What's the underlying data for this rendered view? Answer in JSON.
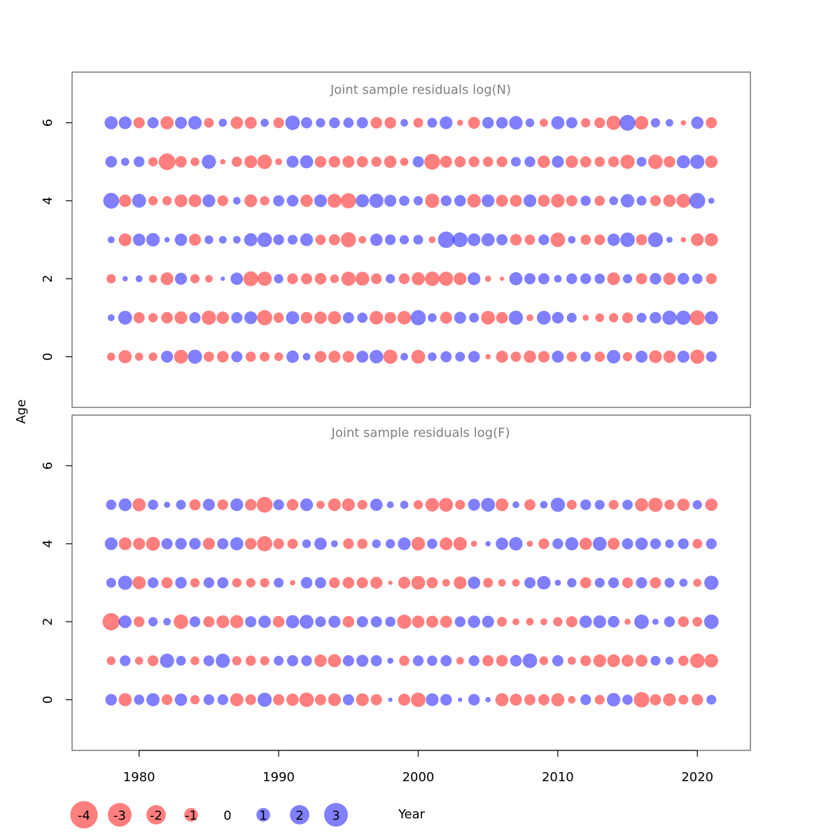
{
  "chart_data": {
    "type": "bubble",
    "ylabel": "Age",
    "xlabel": "Year",
    "x_ticks": [
      1980,
      1990,
      2000,
      2010,
      2020
    ],
    "y_ticks": [
      0,
      2,
      4,
      6
    ],
    "xlim": [
      1975.2,
      2023.8
    ],
    "ylim": [
      -1.3,
      7.3
    ],
    "colors": {
      "negative": "#ff0000",
      "positive": "#0000ff",
      "alpha": 0.5
    },
    "years": [
      1978,
      1979,
      1980,
      1981,
      1982,
      1983,
      1984,
      1985,
      1986,
      1987,
      1988,
      1989,
      1990,
      1991,
      1992,
      1993,
      1994,
      1995,
      1996,
      1997,
      1998,
      1999,
      2000,
      2001,
      2002,
      2003,
      2004,
      2005,
      2006,
      2007,
      2008,
      2009,
      2010,
      2011,
      2012,
      2013,
      2014,
      2015,
      2016,
      2017,
      2018,
      2019,
      2020,
      2021
    ],
    "legend": {
      "values": [
        -4,
        -3,
        -2,
        -1,
        0,
        1,
        2,
        3
      ],
      "labels": [
        "-4",
        "-3",
        "-2",
        "-1",
        "0",
        "1",
        "2",
        "3"
      ]
    },
    "panels": [
      {
        "title": "Joint sample residuals log(N)",
        "ages": [
          0,
          1,
          2,
          3,
          4,
          5,
          6
        ],
        "residuals": [
          [
            -0.7,
            -1.8,
            -0.7,
            -0.8,
            1.5,
            -2.0,
            2.1,
            -1.1,
            -1.4,
            1.3,
            -1.1,
            -1.0,
            -0.8,
            1.6,
            0.6,
            -1.4,
            -1.5,
            -1.4,
            1.5,
            1.9,
            -2.1,
            0.6,
            -2.0,
            0.8,
            1.3,
            1.0,
            1.4,
            -0.3,
            -1.5,
            -1.1,
            -1.6,
            -1.4,
            1.5,
            -1.1,
            1.1,
            -1.1,
            1.9,
            -0.9,
            1.5,
            -1.7,
            -1.6,
            1.5,
            -2.1,
            1.2
          ],
          [
            0.5,
            2.0,
            -1.3,
            -0.9,
            -1.4,
            -1.7,
            1.3,
            -2.1,
            -1.6,
            1.3,
            1.7,
            -2.4,
            -1.1,
            1.8,
            -1.4,
            -1.6,
            -1.8,
            1.3,
            1.1,
            -1.9,
            -1.4,
            -1.9,
            2.4,
            0.8,
            -1.5,
            1.5,
            1.0,
            -2.0,
            -1.4,
            2.1,
            -0.5,
            2.0,
            1.4,
            1.0,
            -0.4,
            -0.8,
            -0.9,
            -1.2,
            1.0,
            1.4,
            2.1,
            2.1,
            -2.3,
            1.8
          ],
          [
            -0.9,
            0.3,
            0.5,
            -0.7,
            -1.7,
            1.5,
            -0.9,
            -0.6,
            0.2,
            1.6,
            -2.3,
            -2.1,
            0.9,
            -1.2,
            -1.3,
            -1.4,
            -0.8,
            -2.1,
            -2.0,
            -1.2,
            0.9,
            -1.2,
            -1.8,
            -2.2,
            -2.1,
            -1.7,
            1.7,
            -0.4,
            -0.2,
            1.8,
            1.3,
            1.3,
            0.6,
            1.2,
            1.2,
            1.1,
            -1.7,
            0.9,
            -1.3,
            1.4,
            -1.6,
            1.4,
            1.1,
            -1.2
          ],
          [
            0.5,
            -1.7,
            1.6,
            1.9,
            0.3,
            1.6,
            -1.5,
            0.8,
            0.6,
            0.6,
            1.8,
            2.2,
            1.2,
            1.0,
            1.7,
            -1.1,
            -1.3,
            -2.4,
            -0.6,
            1.6,
            1.2,
            0.9,
            1.0,
            -0.5,
            2.8,
            2.3,
            1.7,
            1.8,
            1.3,
            -1.4,
            -1.1,
            1.2,
            -2.2,
            0.6,
            -1.1,
            -1.2,
            1.6,
            2.2,
            -1.3,
            2.3,
            0.4,
            -0.3,
            -1.7,
            -1.8
          ],
          [
            2.6,
            -1.6,
            2.0,
            -0.9,
            -0.9,
            -1.7,
            -1.7,
            1.7,
            -1.2,
            0.6,
            -1.7,
            -0.9,
            1.3,
            1.4,
            -1.6,
            1.7,
            -2.0,
            -2.4,
            1.8,
            2.1,
            1.5,
            1.1,
            0.9,
            -2.1,
            1.2,
            1.4,
            -1.9,
            1.7,
            -1.5,
            -1.5,
            1.7,
            -1.5,
            -1.9,
            -1.3,
            1.1,
            -1.1,
            0.8,
            1.9,
            1.0,
            -1.2,
            -1.6,
            -2.0,
            2.6,
            0.4
          ],
          [
            1.4,
            0.7,
            1.2,
            -0.9,
            -2.9,
            -1.4,
            -0.8,
            2.1,
            -0.3,
            -1.1,
            -1.7,
            -2.2,
            -0.5,
            1.5,
            1.8,
            -1.4,
            -1.4,
            -1.5,
            -1.3,
            -1.1,
            -1.6,
            -0.7,
            1.3,
            -2.6,
            -1.5,
            -1.3,
            -1.2,
            -1.1,
            -1.2,
            1.0,
            1.2,
            -1.6,
            1.5,
            -1.6,
            -1.3,
            -1.1,
            -1.2,
            -2.1,
            1.0,
            -2.2,
            -1.4,
            1.8,
            2.1,
            -1.6
          ],
          [
            1.8,
            1.7,
            -1.3,
            1.3,
            -1.8,
            1.5,
            1.9,
            -1.0,
            0.7,
            -1.6,
            -1.5,
            0.7,
            -1.2,
            2.2,
            1.3,
            0.9,
            1.2,
            1.1,
            1.3,
            -1.4,
            -1.4,
            0.6,
            -1.0,
            1.0,
            1.7,
            -0.4,
            -1.5,
            1.4,
            1.4,
            1.9,
            0.8,
            -0.7,
            1.8,
            1.3,
            -0.9,
            -1.2,
            -2.1,
            2.6,
            -1.9,
            0.9,
            0.6,
            -0.3,
            1.6,
            -1.3
          ]
        ]
      },
      {
        "title": "Joint sample residuals log(F)",
        "ages": [
          0,
          1,
          2,
          3,
          4,
          5
        ],
        "residuals": [
          [
            1.4,
            -1.8,
            1.1,
            1.8,
            -1.2,
            1.6,
            -0.9,
            1.2,
            1.2,
            -1.8,
            -1.2,
            2.1,
            -1.3,
            -1.6,
            -2.2,
            -1.3,
            -1.7,
            1.3,
            -1.7,
            -1.3,
            0.2,
            -1.5,
            -2.2,
            1.7,
            1.4,
            0.2,
            1.4,
            0.3,
            -1.8,
            -1.5,
            -1.3,
            -1.3,
            -1.8,
            -0.6,
            1.2,
            -1.0,
            1.9,
            1.1,
            -2.5,
            -1.3,
            -1.7,
            -1.0,
            -1.4,
            1.0
          ],
          [
            -0.8,
            1.2,
            -0.7,
            -1.2,
            2.1,
            1.0,
            -0.8,
            1.2,
            2.1,
            -0.9,
            -1.1,
            -0.9,
            1.0,
            1.3,
            1.2,
            -1.6,
            -1.8,
            1.3,
            1.5,
            1.3,
            0.4,
            -1.1,
            1.2,
            1.1,
            1.3,
            -0.6,
            1.2,
            -1.3,
            -1.4,
            1.4,
            2.2,
            -0.8,
            1.3,
            -0.7,
            -1.2,
            -1.7,
            -1.7,
            -1.5,
            -1.5,
            1.0,
            0.7,
            -1.1,
            -2.2,
            -1.9
          ],
          [
            -3.1,
            1.7,
            -1.2,
            0.9,
            0.6,
            -2.2,
            1.2,
            -1.3,
            -1.7,
            -1.8,
            1.3,
            1.6,
            -1.4,
            1.8,
            2.0,
            1.2,
            1.5,
            -1.4,
            1.3,
            1.3,
            1.1,
            -2.1,
            -1.6,
            -1.5,
            -1.5,
            1.2,
            1.6,
            1.5,
            -1.0,
            -0.5,
            -0.6,
            -0.5,
            -0.9,
            -1.3,
            1.6,
            1.7,
            1.4,
            -0.4,
            2.2,
            0.4,
            1.2,
            -1.2,
            -1.0,
            2.2
          ],
          [
            1.0,
            2.1,
            -1.8,
            1.2,
            -1.3,
            1.4,
            -0.9,
            1.2,
            1.3,
            -0.9,
            -0.9,
            -0.9,
            1.0,
            -0.3,
            1.4,
            1.3,
            -1.2,
            -1.4,
            -1.3,
            -1.5,
            -0.2,
            -1.5,
            -2.0,
            -1.3,
            -0.6,
            -1.7,
            1.6,
            -1.0,
            -0.6,
            -0.6,
            1.3,
            1.9,
            0.4,
            0.9,
            -1.3,
            1.0,
            1.2,
            -1.2,
            1.3,
            -1.3,
            1.0,
            0.7,
            -0.7,
            2.1
          ],
          [
            1.7,
            -1.7,
            -1.5,
            -2.0,
            1.3,
            1.4,
            1.4,
            -1.5,
            1.3,
            1.8,
            -1.4,
            -2.4,
            -1.2,
            -1.1,
            0.8,
            1.6,
            0.5,
            -1.2,
            -1.1,
            0.8,
            0.9,
            1.7,
            -1.9,
            1.1,
            -1.7,
            -1.9,
            -0.4,
            0.3,
            1.6,
            1.9,
            -0.4,
            -1.2,
            1.2,
            1.8,
            -1.6,
            2.0,
            -1.5,
            1.3,
            1.6,
            1.2,
            0.8,
            1.2,
            -1.0,
            1.2
          ],
          [
            1.1,
            1.7,
            -1.8,
            1.1,
            0.4,
            1.0,
            -1.3,
            1.5,
            -1.2,
            1.7,
            -1.4,
            -2.6,
            1.2,
            -1.4,
            1.7,
            -0.7,
            -1.7,
            -1.7,
            -1.0,
            1.6,
            0.5,
            0.7,
            -0.9,
            -1.9,
            -2.0,
            -1.0,
            1.5,
            2.0,
            -1.7,
            0.5,
            -1.3,
            0.6,
            2.1,
            -1.0,
            1.2,
            1.0,
            -1.0,
            1.1,
            -1.8,
            -2.1,
            -1.1,
            -1.6,
            0.9,
            -1.6
          ]
        ]
      }
    ]
  }
}
